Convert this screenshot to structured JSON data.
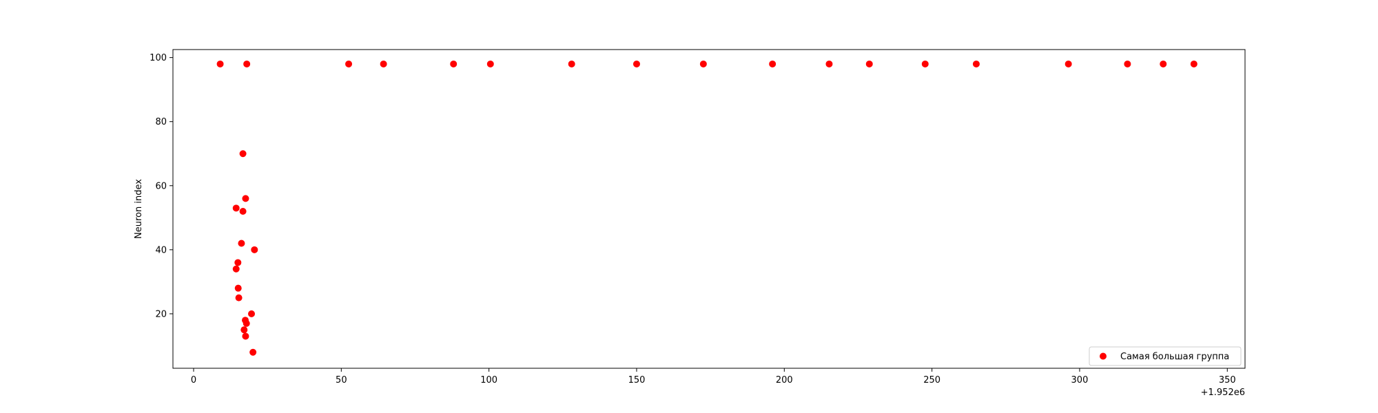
{
  "chart_data": {
    "type": "scatter",
    "ylabel": "Neuron index",
    "x_offset_text": "+1.952e6",
    "xlim": [
      -7,
      356
    ],
    "ylim": [
      3,
      102.5
    ],
    "xticks": [
      0,
      50,
      100,
      150,
      200,
      250,
      300,
      350
    ],
    "yticks": [
      20,
      40,
      60,
      80,
      100
    ],
    "grid": false,
    "legend_position": "lower-right",
    "series": [
      {
        "name": "Самая большая группа",
        "color": "#ff0000",
        "points": [
          {
            "x": 9,
            "y": 98
          },
          {
            "x": 18,
            "y": 98
          },
          {
            "x": 52.5,
            "y": 98
          },
          {
            "x": 64.3,
            "y": 98
          },
          {
            "x": 88,
            "y": 98
          },
          {
            "x": 100.5,
            "y": 98
          },
          {
            "x": 128,
            "y": 98
          },
          {
            "x": 150,
            "y": 98
          },
          {
            "x": 172.6,
            "y": 98
          },
          {
            "x": 196,
            "y": 98
          },
          {
            "x": 215.2,
            "y": 98
          },
          {
            "x": 228.8,
            "y": 98
          },
          {
            "x": 247.7,
            "y": 98
          },
          {
            "x": 265,
            "y": 98
          },
          {
            "x": 296.2,
            "y": 98
          },
          {
            "x": 316.2,
            "y": 98
          },
          {
            "x": 328.3,
            "y": 98
          },
          {
            "x": 338.7,
            "y": 98
          },
          {
            "x": 16.7,
            "y": 70
          },
          {
            "x": 17.6,
            "y": 56
          },
          {
            "x": 14.4,
            "y": 53
          },
          {
            "x": 16.7,
            "y": 52
          },
          {
            "x": 16.2,
            "y": 42
          },
          {
            "x": 20.6,
            "y": 40
          },
          {
            "x": 15,
            "y": 36
          },
          {
            "x": 14.4,
            "y": 34
          },
          {
            "x": 15.1,
            "y": 28
          },
          {
            "x": 15.3,
            "y": 25
          },
          {
            "x": 19.6,
            "y": 20
          },
          {
            "x": 17.5,
            "y": 18
          },
          {
            "x": 17.9,
            "y": 17
          },
          {
            "x": 17.1,
            "y": 15
          },
          {
            "x": 17.6,
            "y": 13
          },
          {
            "x": 20.1,
            "y": 8
          }
        ]
      }
    ]
  }
}
